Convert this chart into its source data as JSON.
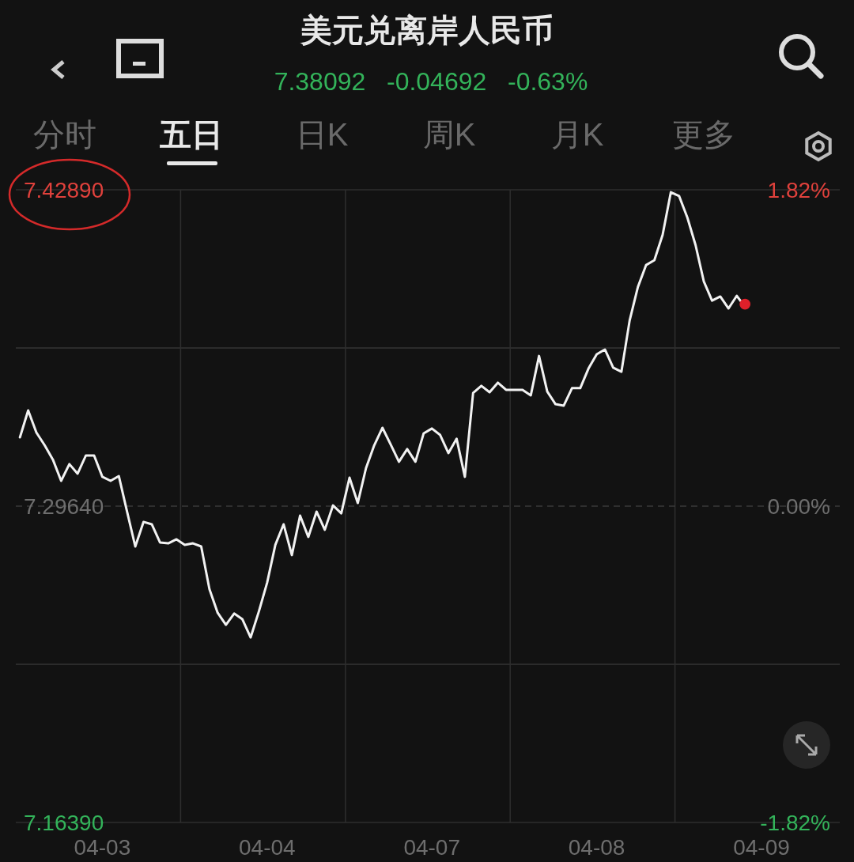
{
  "chart_data": {
    "type": "line",
    "title": "美元兑离岸人民币",
    "subtitle": "7.38092   -0.04692   -0.63%",
    "annotations": [
      "分时",
      "五日",
      "日K",
      "周K",
      "月K",
      "更多"
    ],
    "categories": [
      null,
      null,
      null,
      null,
      null,
      null,
      null,
      null,
      null,
      null,
      "04-03",
      null,
      null,
      null,
      null,
      null,
      null,
      null,
      null,
      null,
      null,
      null,
      null,
      null,
      null,
      null,
      null,
      null,
      null,
      null,
      "04-04",
      null,
      null,
      null,
      null,
      null,
      null,
      null,
      null,
      null,
      null,
      null,
      null,
      null,
      null,
      null,
      null,
      null,
      null,
      null,
      "04-07",
      null,
      null,
      null,
      null,
      null,
      null,
      null,
      null,
      null,
      null,
      null,
      null,
      null,
      null,
      null,
      null,
      null,
      null,
      null,
      "04-08",
      null,
      null,
      null,
      null,
      null,
      null,
      null,
      null,
      null,
      null,
      null,
      null,
      null,
      null,
      null,
      null,
      null,
      null,
      null,
      "04-09",
      null,
      null,
      null,
      null,
      null,
      null,
      null,
      null,
      null
    ],
    "ylim": [
      7.1639,
      7.4289
    ],
    "yticks": [
      {
        "value": 7.1639,
        "label": "7.16390"
      },
      {
        "value": 7.23015,
        "label": null
      },
      {
        "value": 7.2964,
        "label": "7.29640"
      },
      {
        "value": 7.36265,
        "label": null
      },
      {
        "value": 7.4289,
        "label": "7.42890"
      }
    ],
    "y2lim": [
      -1.82,
      1.82
    ],
    "y2ticks": [
      {
        "value": -1.82,
        "label": "-1.82%"
      },
      {
        "value": -0.91,
        "label": null
      },
      {
        "value": 0,
        "label": "0.00%"
      },
      {
        "value": 0.91,
        "label": null
      },
      {
        "value": 1.82,
        "label": "1.82%"
      }
    ],
    "grid": "y",
    "ref_lines": [
      {
        "axis": "y",
        "value": 7.2964,
        "color": "#3a3a3a",
        "line_style": "dashed"
      }
    ],
    "series": [
      {
        "type": "line",
        "color": "#f2f2f2",
        "values": [
          7.3252,
          7.3365,
          7.3272,
          7.3219,
          7.3159,
          7.307,
          7.314,
          7.31,
          7.3176,
          7.3176,
          7.3087,
          7.307,
          7.309,
          7.2941,
          7.2795,
          7.2898,
          7.2888,
          7.2812,
          7.2808,
          7.2825,
          7.2802,
          7.2808,
          7.2795,
          7.2616,
          7.2517,
          7.2467,
          7.2514,
          7.249,
          7.2414,
          7.2523,
          7.2643,
          7.2802,
          7.2888,
          7.2759,
          7.2924,
          7.2835,
          7.2941,
          7.2865,
          7.2967,
          7.2934,
          7.3083,
          7.2977,
          7.3123,
          7.3219,
          7.3292,
          7.3222,
          7.315,
          7.3203,
          7.315,
          7.3269,
          7.3289,
          7.3262,
          7.3186,
          7.3246,
          7.3087,
          7.3438,
          7.3468,
          7.3441,
          7.3481,
          7.3451,
          7.3451,
          7.3451,
          7.3428,
          7.3593,
          7.3444,
          7.3391,
          7.3385,
          7.3458,
          7.3458,
          7.354,
          7.36,
          7.362,
          7.3544,
          7.3527,
          7.3742,
          7.3882,
          7.3974,
          7.3994,
          7.41,
          7.4279,
          7.4263,
          7.4173,
          7.4057,
          7.3905,
          7.3825,
          7.3842,
          7.3792,
          7.3845,
          7.3799,
          null,
          null,
          null,
          null,
          null,
          null,
          null,
          null,
          null,
          null,
          null
        ]
      },
      {
        "type": "scatter",
        "color": "#e0202a",
        "marker": "circle",
        "values": [
          null,
          null,
          null,
          null,
          null,
          null,
          null,
          null,
          null,
          null,
          null,
          null,
          null,
          null,
          null,
          null,
          null,
          null,
          null,
          null,
          null,
          null,
          null,
          null,
          null,
          null,
          null,
          null,
          null,
          null,
          null,
          null,
          null,
          null,
          null,
          null,
          null,
          null,
          null,
          null,
          null,
          null,
          null,
          null,
          null,
          null,
          null,
          null,
          null,
          null,
          null,
          null,
          null,
          null,
          null,
          null,
          null,
          null,
          null,
          null,
          null,
          null,
          null,
          null,
          null,
          null,
          null,
          null,
          null,
          null,
          null,
          null,
          null,
          null,
          null,
          null,
          null,
          null,
          null,
          null,
          null,
          null,
          null,
          null,
          null,
          null,
          null,
          null,
          7.381,
          null,
          null,
          null,
          null,
          null,
          null,
          null,
          null,
          null,
          null,
          null
        ]
      }
    ]
  }
}
